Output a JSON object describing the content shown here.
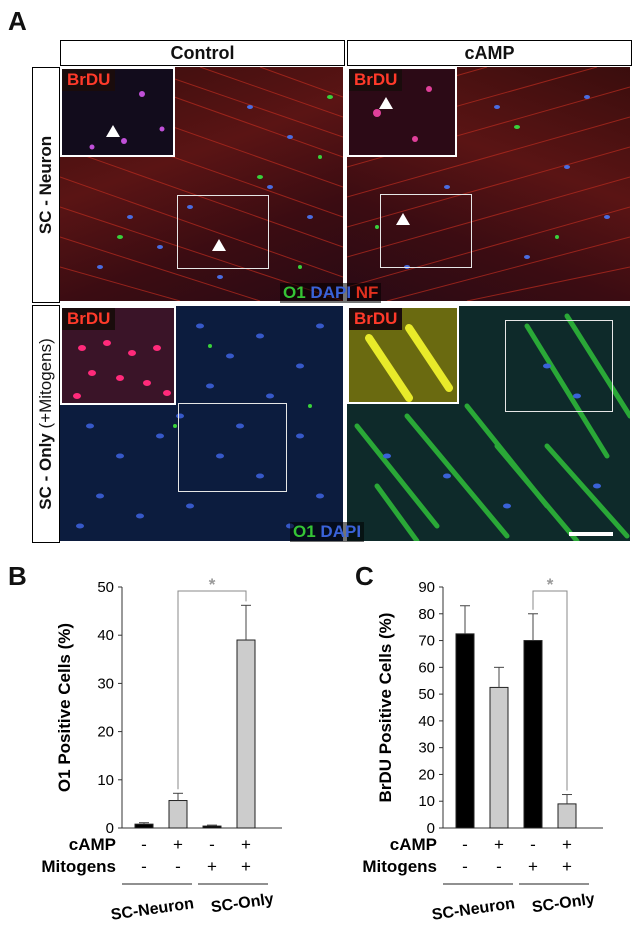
{
  "figure": {
    "panel_a": {
      "letter": "A",
      "columns": [
        "Control",
        "cAMP"
      ],
      "rows": [
        {
          "label": "SC - Neuron",
          "sub": ""
        },
        {
          "label": "SC - Only",
          "sub": "(+Mitogens)"
        }
      ],
      "inset_label": "BrDU",
      "legend_top": {
        "o1": "O1",
        "dapi": "DAPI",
        "nf": "NF"
      },
      "legend_bottom": {
        "o1": "O1",
        "dapi": "DAPI"
      },
      "colors": {
        "o1": "#35c435",
        "dapi": "#3a62d8",
        "nf": "#e0301e",
        "brdu": "#ff3a2a"
      }
    },
    "panel_b": {
      "letter": "B"
    },
    "panel_c": {
      "letter": "C"
    }
  },
  "chart_data": [
    {
      "type": "bar",
      "ylabel": "O1 Positive Cells (%)",
      "ylim": [
        0,
        50
      ],
      "yticks": [
        0,
        10,
        20,
        30,
        40,
        50
      ],
      "categories": [
        "SC-Neuron / -cAMP",
        "SC-Neuron / +cAMP",
        "SC-Only / -cAMP",
        "SC-Only / +cAMP"
      ],
      "values": [
        0.8,
        5.7,
        0.4,
        39
      ],
      "errors": [
        0.3,
        1.5,
        0.2,
        7.2
      ],
      "bar_colors": [
        "#000000",
        "#cccccc",
        "#000000",
        "#cccccc"
      ],
      "factor_rows": [
        {
          "label": "cAMP",
          "marks": [
            "-",
            "+",
            "-",
            "+"
          ]
        },
        {
          "label": "Mitogens",
          "marks": [
            "-",
            "-",
            "+",
            "+"
          ]
        }
      ],
      "groups": [
        "SC-Neuron",
        "SC-Only"
      ],
      "significance": {
        "from": 1,
        "to": 3,
        "label": "*"
      }
    },
    {
      "type": "bar",
      "ylabel": "BrDU Positive Cells (%)",
      "ylim": [
        0,
        90
      ],
      "yticks": [
        0,
        10,
        20,
        30,
        40,
        50,
        60,
        70,
        80,
        90
      ],
      "categories": [
        "SC-Neuron / -cAMP",
        "SC-Neuron / +cAMP",
        "SC-Only / -cAMP",
        "SC-Only / +cAMP"
      ],
      "values": [
        72.5,
        52.5,
        70,
        9
      ],
      "errors": [
        10.5,
        7.5,
        10,
        3.5
      ],
      "bar_colors": [
        "#000000",
        "#cccccc",
        "#000000",
        "#cccccc"
      ],
      "factor_rows": [
        {
          "label": "cAMP",
          "marks": [
            "-",
            "+",
            "-",
            "+"
          ]
        },
        {
          "label": "Mitogens",
          "marks": [
            "-",
            "-",
            "+",
            "+"
          ]
        }
      ],
      "groups": [
        "SC-Neuron",
        "SC-Only"
      ],
      "significance": {
        "from": 2,
        "to": 3,
        "label": "*"
      }
    }
  ]
}
